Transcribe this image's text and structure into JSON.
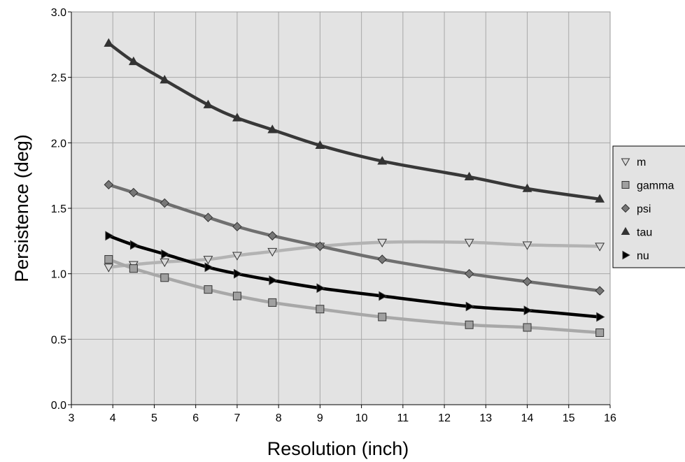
{
  "chart_data": {
    "type": "line",
    "title": "",
    "xlabel": "Resolution (inch)",
    "ylabel": "Persistence (deg)",
    "xlim": [
      3,
      16
    ],
    "ylim": [
      0.0,
      3.0
    ],
    "x_ticks": [
      "3",
      "4",
      "5",
      "6",
      "7",
      "8",
      "9",
      "10",
      "11",
      "12",
      "13",
      "14",
      "15",
      "16"
    ],
    "y_ticks": [
      "0.0",
      "0.5",
      "1.0",
      "1.5",
      "2.0",
      "2.5",
      "3.0"
    ],
    "grid": true,
    "legend_position": "right",
    "colors": {
      "plot_background": "#e3e3e3",
      "gridline": "#a8a8a8",
      "legend_background": "#e3e3e3"
    },
    "series": [
      {
        "name": "m",
        "marker": "triangle-down",
        "color": "#b3b3b3",
        "marker_fill": "#d9d9d9",
        "x": [
          3.9,
          4.5,
          5.25,
          6.3,
          7.0,
          7.85,
          9.0,
          10.5,
          12.6,
          14.0,
          15.75
        ],
        "y": [
          1.05,
          1.07,
          1.09,
          1.11,
          1.14,
          1.17,
          1.21,
          1.24,
          1.24,
          1.22,
          1.21
        ]
      },
      {
        "name": "gamma",
        "marker": "square",
        "color": "#a8a8a8",
        "marker_fill": "#a0a0a0",
        "x": [
          3.9,
          4.5,
          5.25,
          6.3,
          7.0,
          7.85,
          9.0,
          10.5,
          12.6,
          14.0,
          15.75
        ],
        "y": [
          1.11,
          1.04,
          0.97,
          0.88,
          0.83,
          0.78,
          0.73,
          0.67,
          0.61,
          0.59,
          0.55
        ]
      },
      {
        "name": "psi",
        "marker": "diamond",
        "color": "#6f6f6f",
        "marker_fill": "#777777",
        "x": [
          3.9,
          4.5,
          5.25,
          6.3,
          7.0,
          7.85,
          9.0,
          10.5,
          12.6,
          14.0,
          15.75
        ],
        "y": [
          1.68,
          1.62,
          1.54,
          1.43,
          1.36,
          1.29,
          1.21,
          1.11,
          1.0,
          0.94,
          0.87
        ]
      },
      {
        "name": "tau",
        "marker": "triangle-up",
        "color": "#383838",
        "marker_fill": "#333333",
        "x": [
          3.9,
          4.5,
          5.25,
          6.3,
          7.0,
          7.85,
          9.0,
          10.5,
          12.6,
          14.0,
          15.75
        ],
        "y": [
          2.76,
          2.62,
          2.48,
          2.29,
          2.19,
          2.1,
          1.98,
          1.86,
          1.74,
          1.65,
          1.57
        ]
      },
      {
        "name": "nu",
        "marker": "triangle-right",
        "color": "#000000",
        "marker_fill": "#000000",
        "x": [
          3.9,
          4.5,
          5.25,
          6.3,
          7.0,
          7.85,
          9.0,
          10.5,
          12.6,
          14.0,
          15.75
        ],
        "y": [
          1.29,
          1.22,
          1.15,
          1.05,
          1.0,
          0.95,
          0.89,
          0.83,
          0.75,
          0.72,
          0.67
        ]
      }
    ]
  }
}
